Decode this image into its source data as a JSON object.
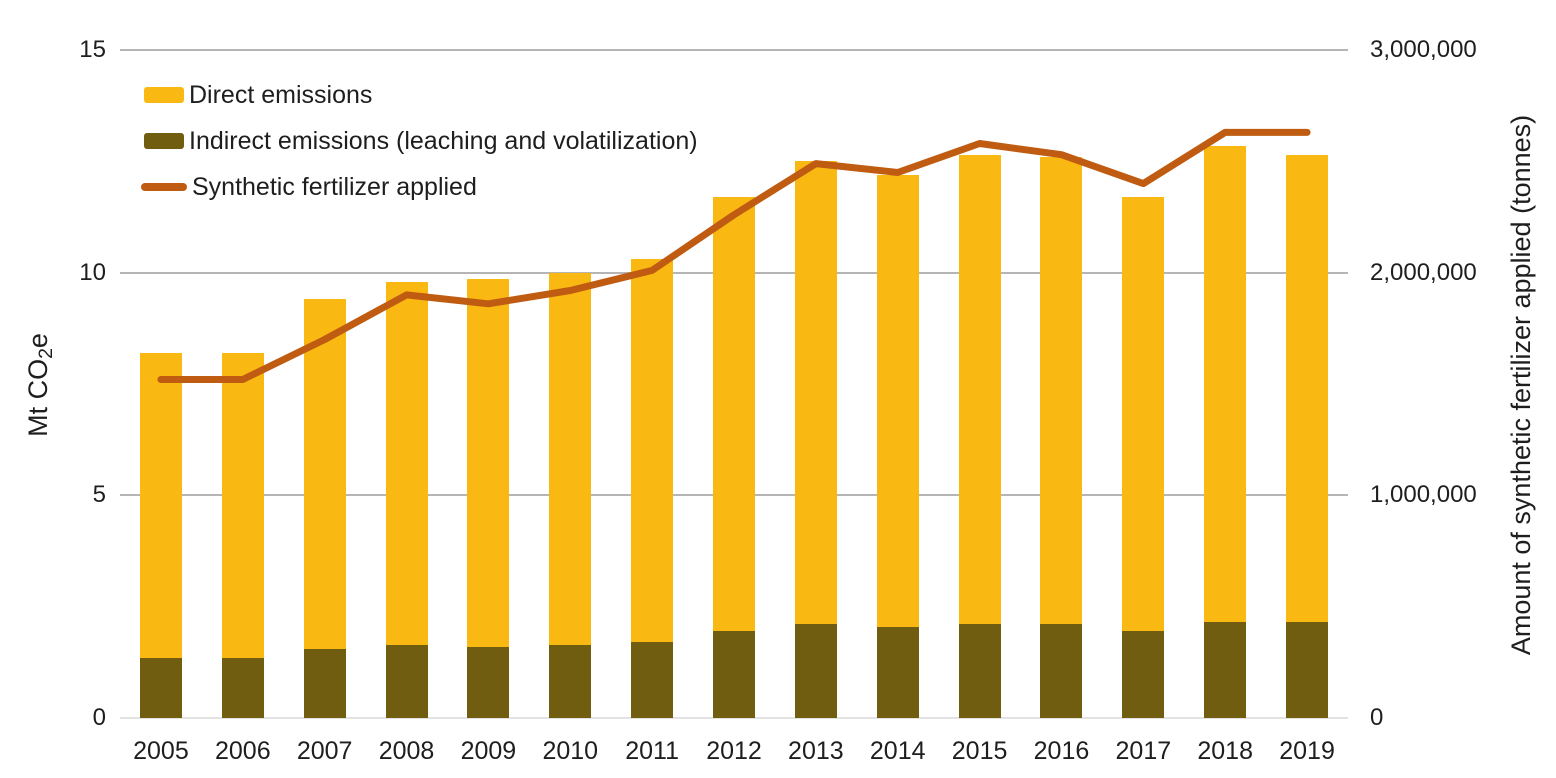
{
  "chart_data": {
    "type": "combo-stacked-bar-line",
    "background_color": "#FFFFFF",
    "categories": [
      "2005",
      "2006",
      "2007",
      "2008",
      "2009",
      "2010",
      "2011",
      "2012",
      "2013",
      "2014",
      "2015",
      "2016",
      "2017",
      "2018",
      "2019"
    ],
    "series": [
      {
        "name": "Direct emissions",
        "chart_type": "bar",
        "stack": "emissions",
        "stack_position": "top",
        "axis": "left",
        "color": "#F9B912",
        "values": [
          6.85,
          6.85,
          7.85,
          8.15,
          8.25,
          8.35,
          8.6,
          9.75,
          10.4,
          10.15,
          10.55,
          10.5,
          9.75,
          10.7,
          10.5
        ]
      },
      {
        "name": "Indirect emissions (leaching and volatilization)",
        "chart_type": "bar",
        "stack": "emissions",
        "stack_position": "bottom",
        "axis": "left",
        "color": "#705D0F",
        "values": [
          1.35,
          1.35,
          1.55,
          1.65,
          1.6,
          1.65,
          1.7,
          1.95,
          2.1,
          2.05,
          2.1,
          2.1,
          1.95,
          2.15,
          2.15
        ]
      },
      {
        "name": "Synthetic fertilizer applied",
        "chart_type": "line",
        "axis": "right",
        "color": "#C05C12",
        "values": [
          1520000,
          1520000,
          1700000,
          1900000,
          1860000,
          1920000,
          2010000,
          2260000,
          2490000,
          2450000,
          2580000,
          2530000,
          2400000,
          2630000,
          2630000
        ]
      }
    ],
    "stacked_totals_mt": [
      8.2,
      8.2,
      9.4,
      9.8,
      9.85,
      10.0,
      10.3,
      11.7,
      12.5,
      12.2,
      12.65,
      12.6,
      11.7,
      12.85,
      12.65
    ],
    "left_axis": {
      "label": "Mt CO2e",
      "label_parts": {
        "pre": "Mt CO",
        "sub": "2",
        "post": "e"
      },
      "range": [
        0,
        15
      ],
      "tick_labels": [
        "0",
        "5",
        "10",
        "15"
      ],
      "tick_values": [
        0,
        5,
        10,
        15
      ]
    },
    "right_axis": {
      "label": "Amount of synthetic fertilizer applied (tonnes)",
      "range": [
        0,
        3000000
      ],
      "tick_labels": [
        "0",
        "1,000,000",
        "2,000,000",
        "3,000,000"
      ],
      "tick_values": [
        0,
        1000000,
        2000000,
        3000000
      ]
    },
    "legend": {
      "position": "top-left-inside",
      "entries": [
        "Direct emissions",
        "Indirect emissions (leaching and volatilization)",
        "Synthetic fertilizer applied"
      ]
    },
    "grid": {
      "show": true,
      "color": "#B5B5B5",
      "baseline_color": "#E3E3E3"
    }
  }
}
